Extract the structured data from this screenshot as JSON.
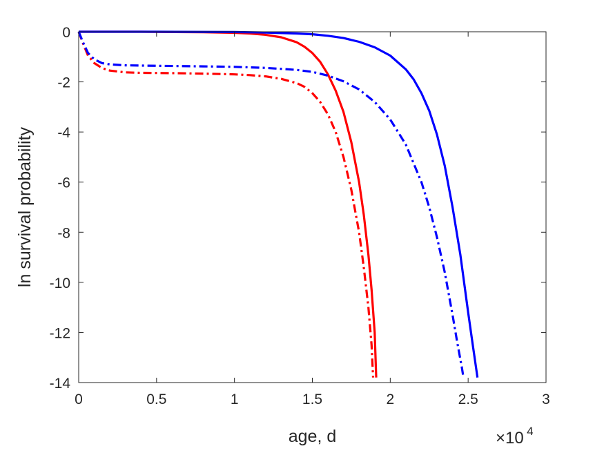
{
  "chart_data": {
    "type": "line",
    "title": "",
    "xlabel": "age, d",
    "ylabel": "ln survival probability",
    "x_multiplier": {
      "base": "×10",
      "exponent": "4"
    },
    "xlim": [
      0,
      3
    ],
    "ylim": [
      -14,
      0
    ],
    "x_ticks": [
      "0",
      "0.5",
      "1",
      "1.5",
      "2",
      "2.5",
      "3"
    ],
    "y_ticks": [
      "0",
      "-2",
      "-4",
      "-6",
      "-8",
      "-10",
      "-12",
      "-14"
    ],
    "grid": false,
    "colors": {
      "red": "#ff0000",
      "blue": "#0000ff",
      "axis": "#262626"
    },
    "series": [
      {
        "color": "#ff0000",
        "style": "solid",
        "x": [
          0,
          0.2,
          0.4,
          0.6,
          0.8,
          1.0,
          1.1,
          1.2,
          1.3,
          1.4,
          1.45,
          1.5,
          1.55,
          1.6,
          1.65,
          1.7,
          1.75,
          1.8,
          1.83,
          1.86,
          1.88,
          1.9,
          1.91
        ],
        "y": [
          0,
          0,
          0,
          -0.01,
          -0.02,
          -0.04,
          -0.07,
          -0.12,
          -0.22,
          -0.42,
          -0.6,
          -0.85,
          -1.2,
          -1.7,
          -2.35,
          -3.2,
          -4.4,
          -6.0,
          -7.3,
          -8.9,
          -10.3,
          -12.0,
          -13.8
        ]
      },
      {
        "color": "#ff0000",
        "style": "dashdot",
        "x": [
          0,
          0.03,
          0.06,
          0.1,
          0.15,
          0.2,
          0.3,
          0.4,
          0.6,
          0.8,
          1.0,
          1.1,
          1.2,
          1.3,
          1.4,
          1.45,
          1.5,
          1.55,
          1.6,
          1.65,
          1.7,
          1.75,
          1.8,
          1.83,
          1.86,
          1.88,
          1.89
        ],
        "y": [
          0,
          -0.5,
          -0.95,
          -1.25,
          -1.45,
          -1.55,
          -1.62,
          -1.64,
          -1.65,
          -1.67,
          -1.7,
          -1.73,
          -1.78,
          -1.88,
          -2.05,
          -2.2,
          -2.45,
          -2.8,
          -3.3,
          -4.0,
          -5.0,
          -6.3,
          -8.0,
          -9.4,
          -11.0,
          -12.5,
          -13.8
        ]
      },
      {
        "color": "#0000ff",
        "style": "solid",
        "x": [
          0,
          0.5,
          1.0,
          1.2,
          1.4,
          1.5,
          1.6,
          1.7,
          1.8,
          1.9,
          2.0,
          2.1,
          2.15,
          2.2,
          2.25,
          2.3,
          2.35,
          2.4,
          2.45,
          2.5,
          2.53,
          2.56
        ],
        "y": [
          0,
          0,
          -0.01,
          -0.03,
          -0.07,
          -0.1,
          -0.16,
          -0.25,
          -0.4,
          -0.62,
          -0.95,
          -1.5,
          -1.9,
          -2.45,
          -3.15,
          -4.1,
          -5.35,
          -7.0,
          -8.9,
          -11.2,
          -12.5,
          -13.8
        ]
      },
      {
        "color": "#0000ff",
        "style": "dashdot",
        "x": [
          0,
          0.03,
          0.06,
          0.1,
          0.15,
          0.2,
          0.3,
          0.5,
          0.8,
          1.0,
          1.2,
          1.4,
          1.5,
          1.6,
          1.7,
          1.8,
          1.9,
          2.0,
          2.1,
          2.2,
          2.25,
          2.3,
          2.35,
          2.4,
          2.43,
          2.46,
          2.47
        ],
        "y": [
          0,
          -0.45,
          -0.85,
          -1.1,
          -1.25,
          -1.3,
          -1.34,
          -1.36,
          -1.38,
          -1.4,
          -1.44,
          -1.52,
          -1.6,
          -1.75,
          -1.98,
          -2.3,
          -2.8,
          -3.5,
          -4.5,
          -6.0,
          -7.0,
          -8.2,
          -9.6,
          -11.3,
          -12.4,
          -13.4,
          -13.8
        ]
      }
    ]
  }
}
